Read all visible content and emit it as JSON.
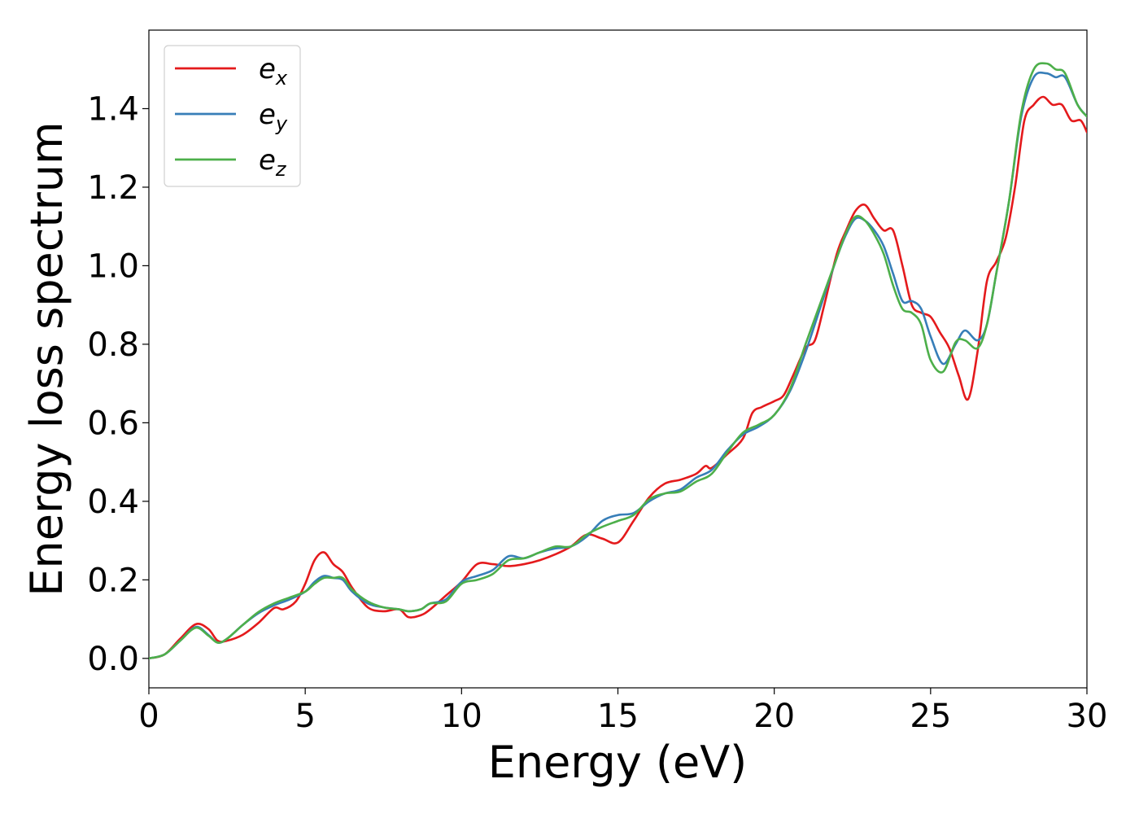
{
  "chart_data": {
    "type": "line",
    "title": "",
    "xlabel": "Energy (eV)",
    "ylabel": "Energy loss spectrum",
    "xlim": [
      0,
      30
    ],
    "ylim": [
      -0.075,
      1.6
    ],
    "xticks": [
      0,
      5,
      10,
      15,
      20,
      25,
      30
    ],
    "xtick_labels": [
      "0",
      "5",
      "10",
      "15",
      "20",
      "25",
      "30"
    ],
    "yticks": [
      0.0,
      0.2,
      0.4,
      0.6,
      0.8,
      1.0,
      1.2,
      1.4
    ],
    "ytick_labels": [
      "0.0",
      "0.2",
      "0.4",
      "0.6",
      "0.8",
      "1.0",
      "1.2",
      "1.4"
    ],
    "grid": false,
    "legend": {
      "position": "top-left",
      "entries": [
        {
          "base": "e",
          "sub": "x"
        },
        {
          "base": "e",
          "sub": "y"
        },
        {
          "base": "e",
          "sub": "z"
        }
      ]
    },
    "series": [
      {
        "color": "#e41a1c",
        "x": [
          0,
          0.5,
          1,
          1.5,
          1.9,
          2.2,
          2.5,
          3,
          3.5,
          4,
          4.3,
          4.7,
          5,
          5.3,
          5.6,
          5.9,
          6.2,
          6.5,
          7,
          7.5,
          8,
          8.3,
          8.7,
          9,
          9.5,
          10,
          10.5,
          11,
          11.5,
          12,
          12.5,
          13,
          13.5,
          14,
          14.5,
          15,
          15.5,
          16,
          16.5,
          17,
          17.5,
          17.8,
          18,
          18.5,
          19,
          19.3,
          19.6,
          20,
          20.3,
          20.6,
          21,
          21.3,
          21.6,
          22,
          22.3,
          22.6,
          22.9,
          23.2,
          23.5,
          23.8,
          24.1,
          24.4,
          24.7,
          25,
          25.3,
          25.6,
          25.9,
          26.2,
          26.5,
          26.8,
          27.1,
          27.4,
          27.7,
          28,
          28.3,
          28.6,
          28.9,
          29.2,
          29.5,
          29.8,
          30
        ],
        "y": [
          0,
          0.01,
          0.05,
          0.087,
          0.075,
          0.045,
          0.045,
          0.06,
          0.09,
          0.128,
          0.125,
          0.145,
          0.19,
          0.25,
          0.27,
          0.24,
          0.22,
          0.18,
          0.13,
          0.12,
          0.125,
          0.105,
          0.11,
          0.125,
          0.16,
          0.195,
          0.24,
          0.24,
          0.235,
          0.24,
          0.25,
          0.265,
          0.285,
          0.315,
          0.305,
          0.295,
          0.35,
          0.41,
          0.445,
          0.455,
          0.47,
          0.49,
          0.485,
          0.52,
          0.56,
          0.625,
          0.64,
          0.655,
          0.67,
          0.72,
          0.79,
          0.81,
          0.9,
          1.03,
          1.09,
          1.14,
          1.155,
          1.12,
          1.09,
          1.09,
          1.0,
          0.9,
          0.88,
          0.87,
          0.83,
          0.79,
          0.72,
          0.66,
          0.78,
          0.96,
          1.01,
          1.07,
          1.2,
          1.37,
          1.41,
          1.43,
          1.41,
          1.41,
          1.37,
          1.37,
          1.34
        ]
      },
      {
        "color": "#377eb8",
        "x": [
          0,
          0.5,
          1,
          1.5,
          1.9,
          2.2,
          2.5,
          3,
          3.5,
          4,
          4.5,
          5,
          5.3,
          5.6,
          5.9,
          6.2,
          6.5,
          7,
          7.5,
          8,
          8.3,
          8.7,
          9,
          9.5,
          10,
          10.5,
          11,
          11.5,
          12,
          12.5,
          13,
          13.5,
          14,
          14.5,
          15,
          15.5,
          16,
          16.5,
          17,
          17.5,
          18,
          18.5,
          19,
          19.5,
          20,
          20.5,
          21,
          21.5,
          22,
          22.3,
          22.6,
          22.9,
          23.2,
          23.5,
          23.8,
          24.1,
          24.4,
          24.7,
          25,
          25.4,
          25.8,
          26.1,
          26.5,
          26.8,
          27.1,
          27.5,
          27.9,
          28.3,
          28.7,
          29,
          29.3,
          29.7,
          30
        ],
        "y": [
          0,
          0.01,
          0.045,
          0.08,
          0.06,
          0.04,
          0.05,
          0.085,
          0.115,
          0.135,
          0.15,
          0.17,
          0.195,
          0.21,
          0.205,
          0.2,
          0.17,
          0.14,
          0.13,
          0.125,
          0.12,
          0.125,
          0.14,
          0.15,
          0.195,
          0.21,
          0.225,
          0.26,
          0.255,
          0.27,
          0.28,
          0.285,
          0.31,
          0.35,
          0.365,
          0.37,
          0.4,
          0.42,
          0.43,
          0.46,
          0.48,
          0.53,
          0.57,
          0.59,
          0.62,
          0.68,
          0.78,
          0.9,
          1.02,
          1.08,
          1.12,
          1.115,
          1.09,
          1.05,
          0.98,
          0.91,
          0.91,
          0.89,
          0.82,
          0.75,
          0.8,
          0.835,
          0.81,
          0.85,
          0.98,
          1.16,
          1.38,
          1.48,
          1.49,
          1.48,
          1.48,
          1.41,
          1.38
        ]
      },
      {
        "color": "#4daf4a",
        "x": [
          0,
          0.5,
          1,
          1.5,
          1.9,
          2.2,
          2.5,
          3,
          3.5,
          4,
          4.5,
          5,
          5.3,
          5.6,
          5.9,
          6.2,
          6.5,
          7,
          7.5,
          8,
          8.3,
          8.7,
          9,
          9.5,
          10,
          10.5,
          11,
          11.5,
          12,
          12.5,
          13,
          13.5,
          14,
          14.5,
          15,
          15.5,
          16,
          16.5,
          17,
          17.5,
          18,
          18.5,
          19,
          19.5,
          20,
          20.5,
          21,
          21.5,
          22,
          22.3,
          22.6,
          22.9,
          23.2,
          23.5,
          23.8,
          24.1,
          24.4,
          24.7,
          25,
          25.4,
          25.8,
          26.1,
          26.5,
          26.8,
          27.1,
          27.5,
          27.9,
          28.3,
          28.7,
          29,
          29.3,
          29.7,
          30
        ],
        "y": [
          0,
          0.01,
          0.045,
          0.078,
          0.058,
          0.04,
          0.05,
          0.085,
          0.118,
          0.14,
          0.155,
          0.17,
          0.19,
          0.205,
          0.205,
          0.205,
          0.175,
          0.145,
          0.13,
          0.125,
          0.12,
          0.125,
          0.14,
          0.145,
          0.19,
          0.2,
          0.215,
          0.25,
          0.255,
          0.27,
          0.285,
          0.285,
          0.315,
          0.335,
          0.35,
          0.365,
          0.405,
          0.42,
          0.425,
          0.45,
          0.47,
          0.525,
          0.575,
          0.595,
          0.62,
          0.685,
          0.8,
          0.91,
          1.02,
          1.085,
          1.125,
          1.115,
          1.08,
          1.03,
          0.95,
          0.89,
          0.88,
          0.85,
          0.76,
          0.73,
          0.805,
          0.81,
          0.79,
          0.85,
          0.98,
          1.16,
          1.39,
          1.5,
          1.515,
          1.5,
          1.49,
          1.41,
          1.38
        ]
      }
    ]
  }
}
